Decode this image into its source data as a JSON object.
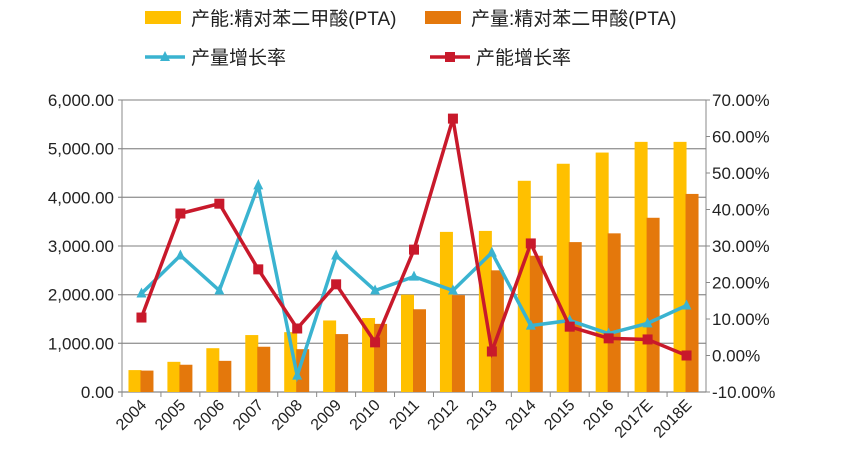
{
  "chart_data": {
    "type": "bar+line",
    "categories": [
      "2004",
      "2005",
      "2006",
      "2007",
      "2008",
      "2009",
      "2010",
      "2011",
      "2012",
      "2013",
      "2014",
      "2015",
      "2016",
      "2017E",
      "2018E"
    ],
    "series": [
      {
        "name": "产能:精对苯二甲酸(PTA)",
        "type": "bar",
        "axis": "left",
        "color": "#FFC000",
        "values": [
          450,
          620,
          900,
          1170,
          1230,
          1470,
          1520,
          2000,
          3290,
          3310,
          4340,
          4690,
          4920,
          5140,
          5140
        ]
      },
      {
        "name": "产量:精对苯二甲酸(PTA)",
        "type": "bar",
        "axis": "left",
        "color": "#E4780C",
        "values": [
          440,
          560,
          640,
          930,
          880,
          1190,
          1400,
          1700,
          1990,
          2500,
          2800,
          3080,
          3260,
          3580,
          4070
        ]
      },
      {
        "name": "产量增长率",
        "type": "line",
        "axis": "right",
        "marker": "triangle",
        "color": "#3AB3D0",
        "values": [
          17,
          27.4,
          17.8,
          46.6,
          -5.5,
          27.4,
          17.8,
          21.6,
          17.8,
          28.2,
          8.2,
          9.6,
          6,
          8.8,
          13.7
        ]
      },
      {
        "name": "产能增长率",
        "type": "line",
        "axis": "right",
        "marker": "square",
        "color": "#C8192B",
        "values": [
          10.4,
          38.9,
          41.6,
          23.6,
          7.4,
          19.5,
          3.6,
          29,
          64.9,
          1.1,
          30.7,
          7.9,
          4.7,
          4.4,
          0
        ]
      }
    ],
    "left_axis": {
      "ylim": [
        0,
        6000
      ],
      "ticks": [
        "0.00",
        "1,000.00",
        "2,000.00",
        "3,000.00",
        "4,000.00",
        "5,000.00",
        "6,000.00"
      ]
    },
    "right_axis": {
      "ylim": [
        -10,
        70
      ],
      "ticks": [
        "-10.00%",
        "0.00%",
        "10.00%",
        "20.00%",
        "30.00%",
        "40.00%",
        "50.00%",
        "60.00%",
        "70.00%"
      ]
    },
    "grid": true,
    "legend_position": "top"
  }
}
